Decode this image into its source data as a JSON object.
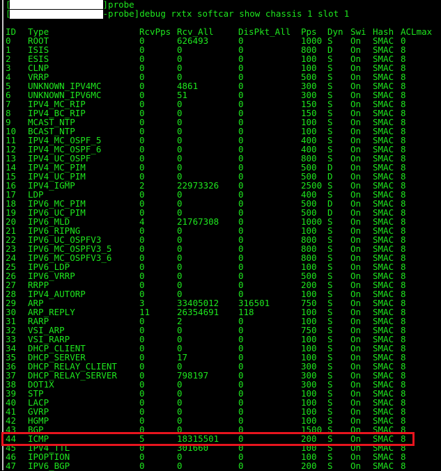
{
  "terminal": {
    "line1_suffix": "]probe",
    "line2_suffix": "-probe]debug rxtx softcar show chassis 1 slot 1",
    "highlight_color": "#e8141e",
    "text_color": "#1ee61e",
    "highlighted_row_id": "44"
  },
  "table": {
    "headers": [
      "ID",
      "Type",
      "RcvPps",
      "Rcv_All",
      "DisPkt_All",
      "Pps",
      "Dyn",
      "Swi",
      "Hash",
      "ACLmax"
    ],
    "rows": [
      [
        "0",
        "ROOT",
        "0",
        "626493",
        "0",
        "1000",
        "S",
        "On",
        "SMAC",
        "0"
      ],
      [
        "1",
        "ISIS",
        "0",
        "0",
        "0",
        "800",
        "D",
        "On",
        "SMAC",
        "8"
      ],
      [
        "2",
        "ESIS",
        "0",
        "0",
        "0",
        "100",
        "S",
        "On",
        "SMAC",
        "8"
      ],
      [
        "3",
        "CLNP",
        "0",
        "0",
        "0",
        "100",
        "S",
        "On",
        "SMAC",
        "8"
      ],
      [
        "4",
        "VRRP",
        "0",
        "0",
        "0",
        "500",
        "S",
        "On",
        "SMAC",
        "8"
      ],
      [
        "5",
        "UNKNOWN_IPV4MC",
        "0",
        "4861",
        "0",
        "300",
        "S",
        "On",
        "SMAC",
        "8"
      ],
      [
        "6",
        "UNKNOWN_IPV6MC",
        "0",
        "51",
        "0",
        "300",
        "S",
        "On",
        "SMAC",
        "8"
      ],
      [
        "7",
        "IPV4_MC_RIP",
        "0",
        "0",
        "0",
        "150",
        "S",
        "On",
        "SMAC",
        "8"
      ],
      [
        "8",
        "IPV4_BC_RIP",
        "0",
        "0",
        "0",
        "150",
        "S",
        "On",
        "SMAC",
        "8"
      ],
      [
        "9",
        "MCAST_NTP",
        "0",
        "0",
        "0",
        "100",
        "S",
        "On",
        "SMAC",
        "8"
      ],
      [
        "10",
        "BCAST_NTP",
        "0",
        "0",
        "0",
        "100",
        "S",
        "On",
        "SMAC",
        "8"
      ],
      [
        "11",
        "IPV4_MC_OSPF_5",
        "0",
        "0",
        "0",
        "400",
        "S",
        "On",
        "SMAC",
        "8"
      ],
      [
        "12",
        "IPV4_MC_OSPF_6",
        "0",
        "0",
        "0",
        "400",
        "S",
        "On",
        "SMAC",
        "8"
      ],
      [
        "13",
        "IPV4_UC_OSPF",
        "0",
        "0",
        "0",
        "800",
        "S",
        "On",
        "SMAC",
        "8"
      ],
      [
        "14",
        "IPV4_MC_PIM",
        "0",
        "0",
        "0",
        "500",
        "D",
        "On",
        "SMAC",
        "8"
      ],
      [
        "15",
        "IPV4_UC_PIM",
        "0",
        "0",
        "0",
        "500",
        "D",
        "On",
        "SMAC",
        "8"
      ],
      [
        "16",
        "IPV4_IGMP",
        "2",
        "22973326",
        "0",
        "2500",
        "S",
        "On",
        "SMAC",
        "8"
      ],
      [
        "17",
        "LDP",
        "0",
        "0",
        "0",
        "400",
        "S",
        "On",
        "SMAC",
        "8"
      ],
      [
        "18",
        "IPV6_MC_PIM",
        "0",
        "0",
        "0",
        "500",
        "D",
        "On",
        "SMAC",
        "8"
      ],
      [
        "19",
        "IPV6_UC_PIM",
        "0",
        "0",
        "0",
        "500",
        "D",
        "On",
        "SMAC",
        "8"
      ],
      [
        "20",
        "IPV6_MLD",
        "4",
        "21767308",
        "0",
        "1000",
        "S",
        "On",
        "SMAC",
        "8"
      ],
      [
        "21",
        "IPV6_RIPNG",
        "0",
        "0",
        "0",
        "100",
        "S",
        "On",
        "SMAC",
        "8"
      ],
      [
        "22",
        "IPV6_UC_OSPFV3",
        "0",
        "0",
        "0",
        "800",
        "S",
        "On",
        "SMAC",
        "8"
      ],
      [
        "23",
        "IPV6_MC_OSPFV3_5",
        "0",
        "0",
        "0",
        "800",
        "S",
        "On",
        "SMAC",
        "8"
      ],
      [
        "24",
        "IPV6_MC_OSPFV3_6",
        "0",
        "0",
        "0",
        "800",
        "S",
        "On",
        "SMAC",
        "8"
      ],
      [
        "25",
        "IPV6_LDP",
        "0",
        "0",
        "0",
        "100",
        "S",
        "On",
        "SMAC",
        "8"
      ],
      [
        "26",
        "IPV6_VRRP",
        "0",
        "0",
        "0",
        "500",
        "S",
        "On",
        "SMAC",
        "8"
      ],
      [
        "27",
        "RRPP",
        "0",
        "0",
        "0",
        "200",
        "S",
        "On",
        "SMAC",
        "8"
      ],
      [
        "28",
        "IPV4_AUTORP",
        "0",
        "0",
        "0",
        "100",
        "S",
        "On",
        "SMAC",
        "8"
      ],
      [
        "29",
        "ARP",
        "3",
        "33405012",
        "316501",
        "750",
        "S",
        "On",
        "SMAC",
        "8"
      ],
      [
        "30",
        "ARP_REPLY",
        "11",
        "26354691",
        "118",
        "100",
        "S",
        "On",
        "SMAC",
        "8"
      ],
      [
        "31",
        "RARP",
        "0",
        "2",
        "0",
        "100",
        "S",
        "On",
        "SMAC",
        "8"
      ],
      [
        "32",
        "VSI_ARP",
        "0",
        "0",
        "0",
        "750",
        "S",
        "On",
        "SMAC",
        "8"
      ],
      [
        "33",
        "VSI_RARP",
        "0",
        "0",
        "0",
        "100",
        "S",
        "On",
        "SMAC",
        "8"
      ],
      [
        "34",
        "DHCP_CLIENT",
        "0",
        "0",
        "0",
        "100",
        "S",
        "On",
        "SMAC",
        "8"
      ],
      [
        "35",
        "DHCP_SERVER",
        "0",
        "17",
        "0",
        "100",
        "S",
        "On",
        "SMAC",
        "8"
      ],
      [
        "36",
        "DHCP_RELAY_CLIENT",
        "0",
        "0",
        "0",
        "300",
        "S",
        "On",
        "SMAC",
        "8"
      ],
      [
        "37",
        "DHCP_RELAY_SERVER",
        "0",
        "798197",
        "0",
        "300",
        "S",
        "On",
        "SMAC",
        "8"
      ],
      [
        "38",
        "DOT1X",
        "0",
        "0",
        "0",
        "300",
        "S",
        "On",
        "SMAC",
        "8"
      ],
      [
        "39",
        "STP",
        "0",
        "0",
        "0",
        "100",
        "S",
        "On",
        "SMAC",
        "8"
      ],
      [
        "40",
        "LACP",
        "0",
        "0",
        "0",
        "100",
        "S",
        "On",
        "SMAC",
        "8"
      ],
      [
        "41",
        "GVRP",
        "0",
        "0",
        "0",
        "100",
        "S",
        "On",
        "SMAC",
        "8"
      ],
      [
        "42",
        "HGMP",
        "0",
        "0",
        "0",
        "100",
        "S",
        "On",
        "SMAC",
        "8"
      ],
      [
        "43",
        "BGP",
        "0",
        "0",
        "0",
        "1500",
        "S",
        "On",
        "SMAC",
        "8"
      ],
      [
        "44",
        "ICMP",
        "5",
        "18315501",
        "0",
        "200",
        "S",
        "On",
        "SMAC",
        "8"
      ],
      [
        "45",
        "IPV4_TTL",
        "0",
        "301660",
        "0",
        "100",
        "S",
        "On",
        "SMAC",
        "8"
      ],
      [
        "46",
        "IPOPTION",
        "0",
        "0",
        "0",
        "100",
        "S",
        "On",
        "SMAC",
        "8"
      ],
      [
        "47",
        "IPV6_BGP",
        "0",
        "0",
        "0",
        "200",
        "S",
        "On",
        "SMAC",
        "8"
      ]
    ]
  }
}
